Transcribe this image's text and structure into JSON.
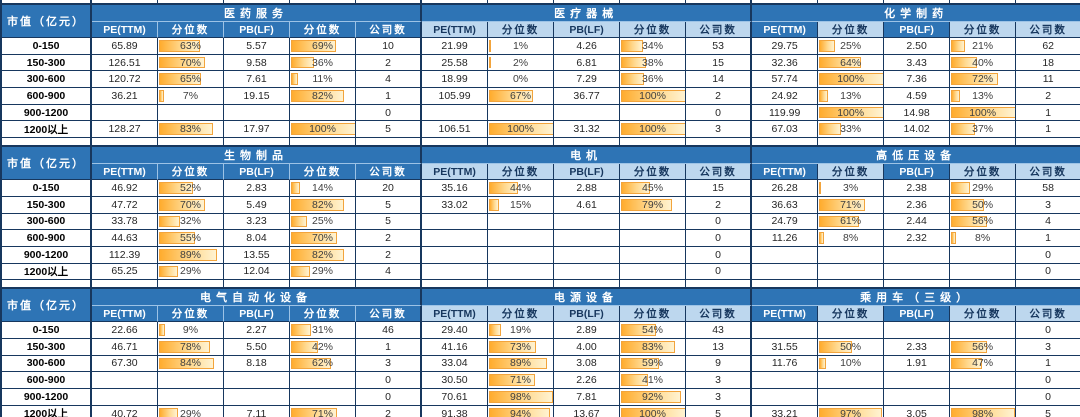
{
  "labels": {
    "market_cap": "市值（亿元）"
  },
  "columns": {
    "pe": "PE(TTM)",
    "pct": "分位数",
    "pb": "PB(LF)",
    "count": "公司数"
  },
  "cap_ranges": [
    "0-150",
    "150-300",
    "300-600",
    "600-900",
    "900-1200",
    "1200以上"
  ],
  "colors": {
    "header_dark_bg": "#2E74B5",
    "header_dark_text": "#FFFFFF",
    "header_light_bg": "#BDD7EE",
    "header_light_text": "#17375E",
    "grid_border": "#17375E",
    "bar_fill_start": "#FFAC2E",
    "bar_fill_end": "#FFF3D2",
    "bar_border": "#F2A43C",
    "value_text": "#262626"
  },
  "chart_data": {
    "type": "table",
    "title": "PE/PB valuation percentile by industry and market cap",
    "sections": [
      {
        "industries": [
          {
            "name": "医药服务",
            "header_style": "dark",
            "rows": [
              {
                "pe": "65.89",
                "pe_pct": "63%",
                "pb": "5.57",
                "pb_pct": "69%",
                "count": "10"
              },
              {
                "pe": "126.51",
                "pe_pct": "70%",
                "pb": "9.58",
                "pb_pct": "36%",
                "count": "2"
              },
              {
                "pe": "120.72",
                "pe_pct": "65%",
                "pb": "7.61",
                "pb_pct": "11%",
                "count": "4"
              },
              {
                "pe": "36.21",
                "pe_pct": "7%",
                "pb": "19.15",
                "pb_pct": "82%",
                "count": "1"
              },
              {
                "pe": "",
                "pe_pct": "",
                "pb": "",
                "pb_pct": "",
                "count": "0"
              },
              {
                "pe": "128.27",
                "pe_pct": "83%",
                "pb": "17.97",
                "pb_pct": "100%",
                "count": "5"
              }
            ]
          },
          {
            "name": "医疗器械",
            "header_style": "light",
            "rows": [
              {
                "pe": "21.99",
                "pe_pct": "1%",
                "pb": "4.26",
                "pb_pct": "34%",
                "count": "53"
              },
              {
                "pe": "25.58",
                "pe_pct": "2%",
                "pb": "6.81",
                "pb_pct": "38%",
                "count": "15"
              },
              {
                "pe": "18.99",
                "pe_pct": "0%",
                "pb": "7.29",
                "pb_pct": "36%",
                "count": "14"
              },
              {
                "pe": "105.99",
                "pe_pct": "67%",
                "pb": "36.77",
                "pb_pct": "100%",
                "count": "2"
              },
              {
                "pe": "",
                "pe_pct": "",
                "pb": "",
                "pb_pct": "",
                "count": "0"
              },
              {
                "pe": "106.51",
                "pe_pct": "100%",
                "pb": "31.32",
                "pb_pct": "100%",
                "count": "3"
              }
            ]
          },
          {
            "name": "化学制药",
            "header_style": "mixed",
            "rows": [
              {
                "pe": "29.75",
                "pe_pct": "25%",
                "pb": "2.50",
                "pb_pct": "21%",
                "count": "62"
              },
              {
                "pe": "32.36",
                "pe_pct": "64%",
                "pb": "3.43",
                "pb_pct": "40%",
                "count": "18"
              },
              {
                "pe": "57.74",
                "pe_pct": "100%",
                "pb": "7.36",
                "pb_pct": "72%",
                "count": "11"
              },
              {
                "pe": "24.92",
                "pe_pct": "13%",
                "pb": "4.59",
                "pb_pct": "13%",
                "count": "2"
              },
              {
                "pe": "119.99",
                "pe_pct": "100%",
                "pb": "14.98",
                "pb_pct": "100%",
                "count": "1"
              },
              {
                "pe": "67.03",
                "pe_pct": "33%",
                "pb": "14.02",
                "pb_pct": "37%",
                "count": "1"
              }
            ]
          }
        ]
      },
      {
        "industries": [
          {
            "name": "生物制品",
            "header_style": "dark",
            "rows": [
              {
                "pe": "46.92",
                "pe_pct": "52%",
                "pb": "2.83",
                "pb_pct": "14%",
                "count": "20"
              },
              {
                "pe": "47.72",
                "pe_pct": "70%",
                "pb": "5.49",
                "pb_pct": "82%",
                "count": "5"
              },
              {
                "pe": "33.78",
                "pe_pct": "32%",
                "pb": "3.23",
                "pb_pct": "25%",
                "count": "5"
              },
              {
                "pe": "44.63",
                "pe_pct": "55%",
                "pb": "8.04",
                "pb_pct": "70%",
                "count": "2"
              },
              {
                "pe": "112.39",
                "pe_pct": "89%",
                "pb": "13.55",
                "pb_pct": "82%",
                "count": "2"
              },
              {
                "pe": "65.25",
                "pe_pct": "29%",
                "pb": "12.04",
                "pb_pct": "29%",
                "count": "4"
              }
            ]
          },
          {
            "name": "电机",
            "header_style": "light",
            "rows": [
              {
                "pe": "35.16",
                "pe_pct": "44%",
                "pb": "2.88",
                "pb_pct": "45%",
                "count": "15"
              },
              {
                "pe": "33.02",
                "pe_pct": "15%",
                "pb": "4.61",
                "pb_pct": "79%",
                "count": "2"
              },
              {
                "pe": "",
                "pe_pct": "",
                "pb": "",
                "pb_pct": "",
                "count": "0"
              },
              {
                "pe": "",
                "pe_pct": "",
                "pb": "",
                "pb_pct": "",
                "count": "0"
              },
              {
                "pe": "",
                "pe_pct": "",
                "pb": "",
                "pb_pct": "",
                "count": "0"
              },
              {
                "pe": "",
                "pe_pct": "",
                "pb": "",
                "pb_pct": "",
                "count": "0"
              }
            ]
          },
          {
            "name": "高低压设备",
            "header_style": "mixed",
            "rows": [
              {
                "pe": "26.28",
                "pe_pct": "3%",
                "pb": "2.38",
                "pb_pct": "29%",
                "count": "58"
              },
              {
                "pe": "36.63",
                "pe_pct": "71%",
                "pb": "2.36",
                "pb_pct": "50%",
                "count": "3"
              },
              {
                "pe": "24.79",
                "pe_pct": "61%",
                "pb": "2.44",
                "pb_pct": "56%",
                "count": "4"
              },
              {
                "pe": "11.26",
                "pe_pct": "8%",
                "pb": "2.32",
                "pb_pct": "8%",
                "count": "1"
              },
              {
                "pe": "",
                "pe_pct": "",
                "pb": "",
                "pb_pct": "",
                "count": "0"
              },
              {
                "pe": "",
                "pe_pct": "",
                "pb": "",
                "pb_pct": "",
                "count": "0"
              }
            ]
          }
        ]
      },
      {
        "industries": [
          {
            "name": "电气自动化设备",
            "header_style": "dark",
            "rows": [
              {
                "pe": "22.66",
                "pe_pct": "9%",
                "pb": "2.27",
                "pb_pct": "31%",
                "count": "46"
              },
              {
                "pe": "46.71",
                "pe_pct": "78%",
                "pb": "5.50",
                "pb_pct": "42%",
                "count": "1"
              },
              {
                "pe": "67.30",
                "pe_pct": "84%",
                "pb": "8.18",
                "pb_pct": "62%",
                "count": "3"
              },
              {
                "pe": "",
                "pe_pct": "",
                "pb": "",
                "pb_pct": "",
                "count": "0"
              },
              {
                "pe": "",
                "pe_pct": "",
                "pb": "",
                "pb_pct": "",
                "count": "0"
              },
              {
                "pe": "40.72",
                "pe_pct": "29%",
                "pb": "7.11",
                "pb_pct": "71%",
                "count": "2"
              }
            ]
          },
          {
            "name": "电源设备",
            "header_style": "light",
            "rows": [
              {
                "pe": "29.40",
                "pe_pct": "19%",
                "pb": "2.89",
                "pb_pct": "54%",
                "count": "43"
              },
              {
                "pe": "41.16",
                "pe_pct": "73%",
                "pb": "4.00",
                "pb_pct": "83%",
                "count": "13"
              },
              {
                "pe": "33.04",
                "pe_pct": "89%",
                "pb": "3.08",
                "pb_pct": "59%",
                "count": "9"
              },
              {
                "pe": "30.50",
                "pe_pct": "71%",
                "pb": "2.26",
                "pb_pct": "41%",
                "count": "3"
              },
              {
                "pe": "70.61",
                "pe_pct": "98%",
                "pb": "7.81",
                "pb_pct": "92%",
                "count": "3"
              },
              {
                "pe": "91.38",
                "pe_pct": "94%",
                "pb": "13.67",
                "pb_pct": "100%",
                "count": "5"
              }
            ]
          },
          {
            "name": "乘用车（三级）",
            "header_style": "mixed",
            "rows": [
              {
                "pe": "",
                "pe_pct": "",
                "pb": "",
                "pb_pct": "",
                "count": "0"
              },
              {
                "pe": "31.55",
                "pe_pct": "50%",
                "pb": "2.33",
                "pb_pct": "56%",
                "count": "3"
              },
              {
                "pe": "11.76",
                "pe_pct": "10%",
                "pb": "1.91",
                "pb_pct": "47%",
                "count": "1"
              },
              {
                "pe": "",
                "pe_pct": "",
                "pb": "",
                "pb_pct": "",
                "count": "0"
              },
              {
                "pe": "",
                "pe_pct": "",
                "pb": "",
                "pb_pct": "",
                "count": "0"
              },
              {
                "pe": "33.21",
                "pe_pct": "97%",
                "pb": "3.05",
                "pb_pct": "98%",
                "count": "5"
              }
            ]
          }
        ]
      }
    ]
  }
}
